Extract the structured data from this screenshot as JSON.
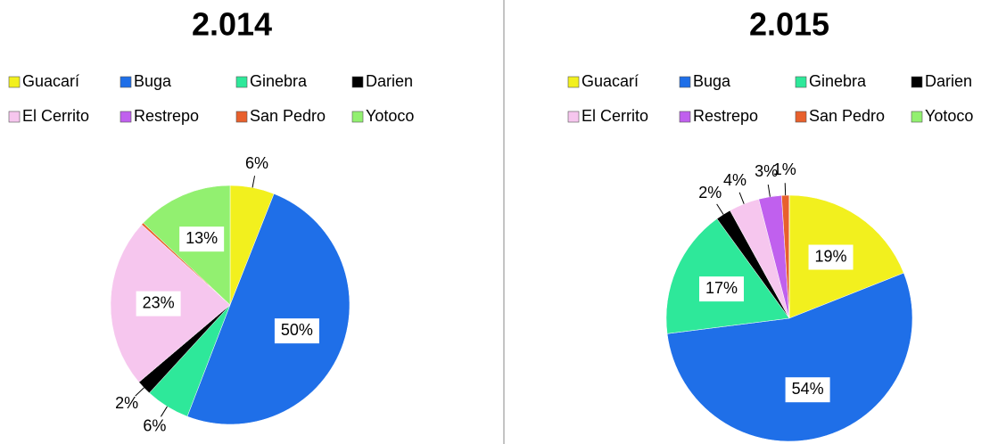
{
  "chart_data": [
    {
      "type": "pie",
      "title": "2.014",
      "categories": [
        "Guacarí",
        "Buga",
        "Ginebra",
        "Darien",
        "El Cerrito",
        "Restrepo",
        "San Pedro",
        "Yotoco"
      ],
      "values": [
        6,
        50,
        6,
        2,
        23,
        0,
        0.3,
        13
      ],
      "value_labels": [
        "6%",
        "50%",
        "6%",
        "2%",
        "23%",
        null,
        null,
        "13%"
      ],
      "colors": [
        "#f2f01e",
        "#1f6fe8",
        "#2ee89a",
        "#000000",
        "#f6c6ee",
        "#c060ee",
        "#e8602c",
        "#92f070"
      ]
    },
    {
      "type": "pie",
      "title": "2.015",
      "categories": [
        "Guacarí",
        "Buga",
        "Ginebra",
        "Darien",
        "El Cerrito",
        "Restrepo",
        "San Pedro",
        "Yotoco"
      ],
      "values": [
        19,
        54,
        17,
        2,
        4,
        3,
        1,
        0
      ],
      "value_labels": [
        "19%",
        "54%",
        "17%",
        "2%",
        "4%",
        "3%",
        "1%",
        null
      ],
      "colors": [
        "#f2f01e",
        "#1f6fe8",
        "#2ee89a",
        "#000000",
        "#f6c6ee",
        "#c060ee",
        "#e8602c",
        "#92f070"
      ]
    }
  ]
}
